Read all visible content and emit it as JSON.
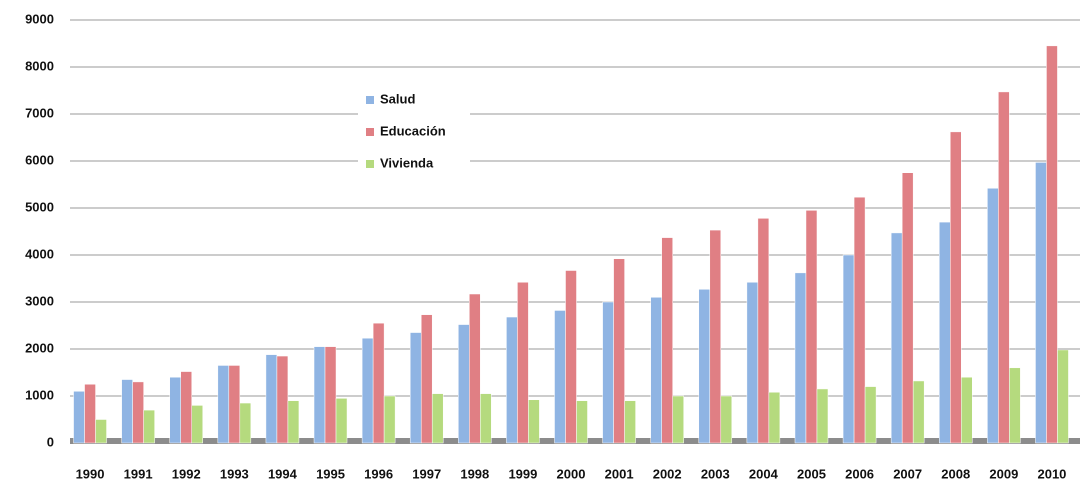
{
  "chart_data": {
    "type": "bar",
    "categories": [
      "1990",
      "1991",
      "1992",
      "1993",
      "1994",
      "1995",
      "1996",
      "1997",
      "1998",
      "1999",
      "2000",
      "2001",
      "2002",
      "2003",
      "2004",
      "2005",
      "2006",
      "2007",
      "2008",
      "2009",
      "2010"
    ],
    "series": [
      {
        "name": "Salud",
        "color": "#8fb4e3",
        "values": [
          1100,
          1350,
          1400,
          1650,
          1880,
          2050,
          2230,
          2350,
          2520,
          2680,
          2820,
          3000,
          3100,
          3270,
          3420,
          3620,
          4000,
          4470,
          4700,
          5420,
          5970
        ]
      },
      {
        "name": "Educación",
        "color": "#e07f84",
        "values": [
          1250,
          1300,
          1520,
          1650,
          1850,
          2050,
          2550,
          2730,
          3170,
          3420,
          3670,
          3920,
          4370,
          4530,
          4780,
          4950,
          5230,
          5750,
          6620,
          7470,
          8450
        ]
      },
      {
        "name": "Vivienda",
        "color": "#b5da7e",
        "values": [
          500,
          700,
          800,
          850,
          900,
          950,
          1000,
          1050,
          1050,
          920,
          900,
          900,
          1000,
          1000,
          1080,
          1150,
          1200,
          1320,
          1400,
          1600,
          1980
        ]
      }
    ],
    "ylim": [
      0,
      9000
    ],
    "yticks": [
      0,
      1000,
      2000,
      3000,
      4000,
      5000,
      6000,
      7000,
      8000,
      9000
    ],
    "grid": true
  }
}
